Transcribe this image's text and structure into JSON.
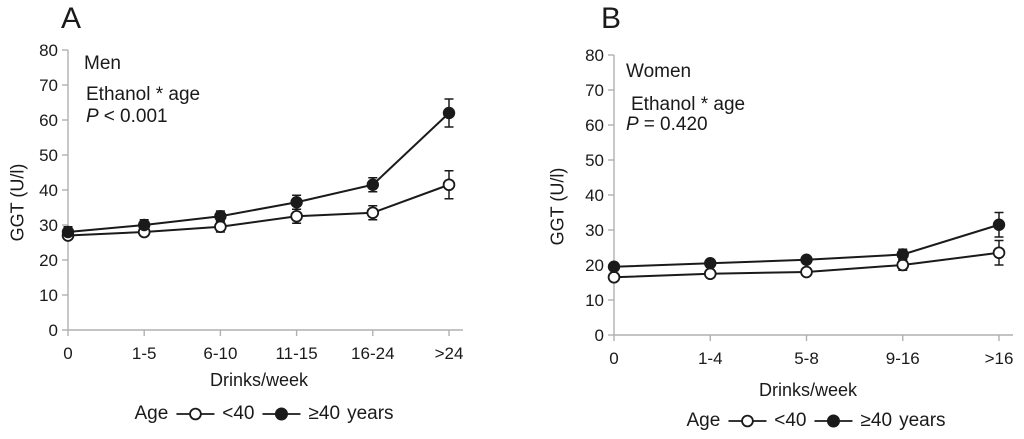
{
  "figure": {
    "legend": {
      "prefix": "Age",
      "entries": [
        {
          "marker": "open-circle",
          "label": "<40"
        },
        {
          "marker": "filled-circle",
          "label": "≥40"
        }
      ],
      "suffix": "years"
    },
    "colors": {
      "series": "#1a1a1a",
      "axis": "#b0b0b0",
      "background": "#ffffff"
    }
  },
  "chart_data": [
    {
      "type": "line",
      "panel_label": "A",
      "group_label": "Men",
      "interaction_label": "Ethanol * age",
      "p_symbol": "P",
      "p_text": "< 0.001",
      "xlabel": "Drinks/week",
      "ylabel": "GGT (U/l)",
      "categories": [
        "0",
        "1-5",
        "6-10",
        "11-15",
        "16-24",
        ">24"
      ],
      "ylim": [
        0,
        80
      ],
      "yticks": [
        0,
        10,
        20,
        30,
        40,
        50,
        60,
        70,
        80
      ],
      "grid": false,
      "legend_position": "bottom",
      "series": [
        {
          "name": "<40",
          "marker": "open-circle",
          "values": [
            27,
            28,
            29.5,
            32.5,
            33.5,
            41.5
          ],
          "errors": [
            1,
            1,
            1.5,
            2,
            2,
            4
          ]
        },
        {
          "name": "≥40 years",
          "marker": "filled-circle",
          "values": [
            28,
            30,
            32.5,
            36.5,
            41.5,
            62
          ],
          "errors": [
            1.5,
            1.5,
            1.5,
            2,
            2,
            4
          ]
        }
      ]
    },
    {
      "type": "line",
      "panel_label": "B",
      "group_label": "Women",
      "interaction_label": "Ethanol * age",
      "p_symbol": "P",
      "p_text": "= 0.420",
      "xlabel": "Drinks/week",
      "ylabel": "GGT (U/l)",
      "categories": [
        "0",
        "1-4",
        "5-8",
        "9-16",
        ">16"
      ],
      "ylim": [
        0,
        80
      ],
      "yticks": [
        0,
        10,
        20,
        30,
        40,
        50,
        60,
        70,
        80
      ],
      "grid": false,
      "legend_position": "bottom",
      "series": [
        {
          "name": "<40",
          "marker": "open-circle",
          "values": [
            16.5,
            17.5,
            18,
            20,
            23.5
          ],
          "errors": [
            1,
            1,
            1,
            1.5,
            3.5
          ]
        },
        {
          "name": "≥40 years",
          "marker": "filled-circle",
          "values": [
            19.5,
            20.5,
            21.5,
            23,
            31.5
          ],
          "errors": [
            1,
            1,
            1,
            1.5,
            3.5
          ]
        }
      ]
    }
  ]
}
